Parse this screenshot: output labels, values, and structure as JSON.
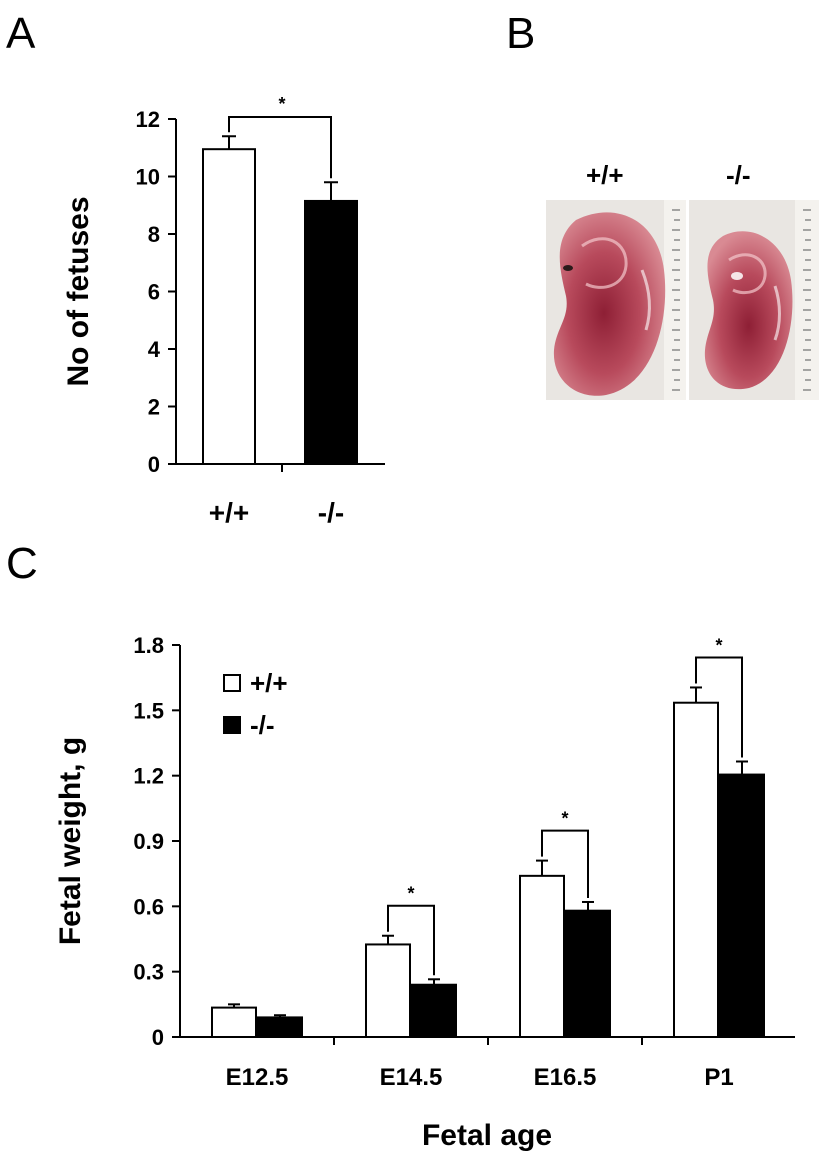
{
  "panels": {
    "a_label": "A",
    "b_label": "B",
    "c_label": "C"
  },
  "colors": {
    "wildtype": "#ffffff",
    "knockout": "#000000",
    "axis": "#000000",
    "embryo": "#b84a5c",
    "photo_bg": "#e9e6e2"
  },
  "panel_b": {
    "labels": [
      "+/+",
      "-/-"
    ]
  },
  "chart_data": [
    {
      "type": "bar",
      "categories": [
        "+/+",
        "-/-"
      ],
      "values": [
        10.95,
        9.15
      ],
      "errors": [
        0.45,
        0.65
      ],
      "colors": [
        "#ffffff",
        "#000000"
      ],
      "ylabel": "No of fetuses",
      "ylim": [
        0,
        12
      ],
      "yticks": [
        "0",
        "2",
        "4",
        "6",
        "8",
        "10",
        "12"
      ],
      "significance": "*",
      "grid": false
    },
    {
      "type": "bar",
      "categories": [
        "E12.5",
        "E14.5",
        "E16.5",
        "P1"
      ],
      "series": [
        {
          "name": "+/+",
          "values": [
            0.135,
            0.425,
            0.74,
            1.535
          ],
          "errors": [
            0.015,
            0.04,
            0.07,
            0.07
          ],
          "color": "#ffffff"
        },
        {
          "name": "-/-",
          "values": [
            0.09,
            0.24,
            0.58,
            1.205
          ],
          "errors": [
            0.01,
            0.025,
            0.04,
            0.06
          ],
          "color": "#000000"
        }
      ],
      "significance": [
        "",
        "*",
        "*",
        "*"
      ],
      "xlabel": "Fetal age",
      "ylabel": "Fetal weight, g",
      "ylim": [
        0,
        1.8
      ],
      "yticks": [
        "0",
        "0.3",
        "0.6",
        "0.9",
        "1.2",
        "1.5",
        "1.8"
      ],
      "legend_position": "top-left",
      "grid": false
    }
  ]
}
